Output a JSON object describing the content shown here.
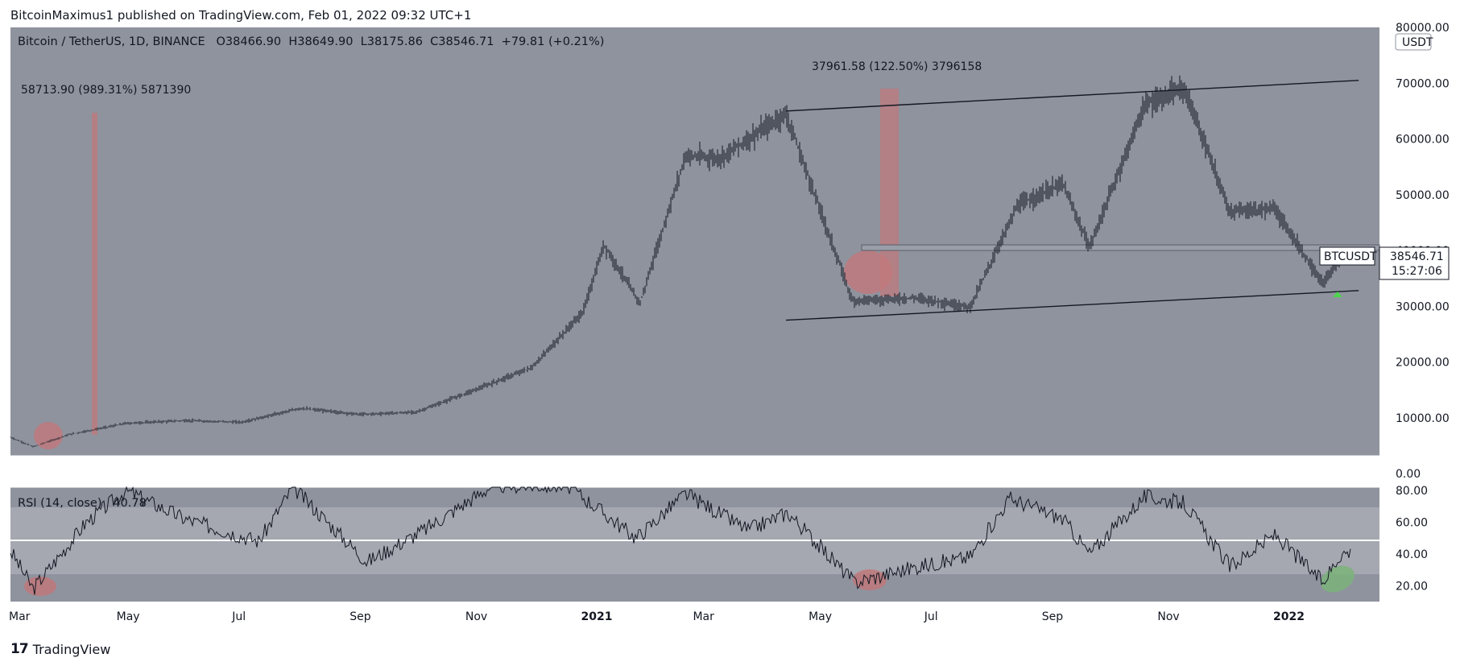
{
  "caption": "BitcoinMaximus1 published on TradingView.com, Feb 01, 2022 09:32 UTC+1",
  "header": {
    "symbol": "Bitcoin / TetherUS, 1D, BINANCE",
    "open_label": "O",
    "open": "38466.90",
    "high_label": "H",
    "high": "38649.90",
    "low_label": "L",
    "low": "38175.86",
    "close_label": "C",
    "close": "38546.71",
    "change": "+79.81 (+0.21%)"
  },
  "price_tag": {
    "symbol": "BTCUSDT",
    "value": "38546.71",
    "countdown": "15:27:06"
  },
  "currency_badge": "USDT",
  "rsi_header": {
    "label": "RSI (14, close)",
    "value": "40.78"
  },
  "footer": {
    "brand": "TradingView",
    "logo_text": "17"
  },
  "colors": {
    "plot_bg": "#8f939e",
    "band_bg": "#a5a8b0",
    "mark_red": "#c0787a",
    "mark_green": "#7bb37a",
    "arrow_green": "#4cd44c",
    "line": "#131722"
  },
  "chart_data": [
    {
      "type": "candlestick",
      "title": "Bitcoin / TetherUS, 1D, BINANCE",
      "x_ticks": [
        "Mar",
        "May",
        "Jul",
        "Sep",
        "Nov",
        "2021",
        "Mar",
        "May",
        "Jul",
        "Sep",
        "Nov",
        "2022"
      ],
      "y_ticks": [
        "80000.00",
        "70000.00",
        "60000.00",
        "50000.00",
        "40000.00",
        "30000.00",
        "20000.00",
        "10000.00",
        "0.00"
      ],
      "ylim": [
        0,
        80000
      ],
      "series_name": "BTCUSDT",
      "approx_closes": [
        {
          "t": "2020-03",
          "v": 6500
        },
        {
          "t": "2020-03-13",
          "v": 4800
        },
        {
          "t": "2020-04",
          "v": 7000
        },
        {
          "t": "2020-05",
          "v": 9000
        },
        {
          "t": "2020-06",
          "v": 9500
        },
        {
          "t": "2020-07",
          "v": 9200
        },
        {
          "t": "2020-08",
          "v": 11700
        },
        {
          "t": "2020-09",
          "v": 10600
        },
        {
          "t": "2020-10",
          "v": 11000
        },
        {
          "t": "2020-11",
          "v": 15000
        },
        {
          "t": "2020-12",
          "v": 19000
        },
        {
          "t": "2020-12-28",
          "v": 29000
        },
        {
          "t": "2021-01-08",
          "v": 41000
        },
        {
          "t": "2021-01-27",
          "v": 30500
        },
        {
          "t": "2021-02-20",
          "v": 57000
        },
        {
          "t": "2021-03-10",
          "v": 56500
        },
        {
          "t": "2021-04-14",
          "v": 64500
        },
        {
          "t": "2021-05-19",
          "v": 31000
        },
        {
          "t": "2021-06-22",
          "v": 31500
        },
        {
          "t": "2021-07-20",
          "v": 29800
        },
        {
          "t": "2021-08-14",
          "v": 48000
        },
        {
          "t": "2021-09-07",
          "v": 52000
        },
        {
          "t": "2021-09-21",
          "v": 40500
        },
        {
          "t": "2021-10-20",
          "v": 66000
        },
        {
          "t": "2021-11-10",
          "v": 69000
        },
        {
          "t": "2021-12-04",
          "v": 47000
        },
        {
          "t": "2021-12-28",
          "v": 47500
        },
        {
          "t": "2022-01-22",
          "v": 34000
        },
        {
          "t": "2022-02-01",
          "v": 38546.71
        }
      ],
      "annotations": [
        "58713.90 (989.31%) 5871390",
        "37961.58 (122.50%) 3796158"
      ],
      "channel": {
        "upper": [
          [
            "2021-04-14",
            65000
          ],
          [
            "2022-02-10",
            70500
          ]
        ],
        "lower": [
          [
            "2021-04-14",
            27500
          ],
          [
            "2022-02-10",
            32800
          ]
        ]
      },
      "horizontal_zone": [
        40000,
        41000
      ]
    },
    {
      "type": "line",
      "title": "RSI (14, close)",
      "y_ticks": [
        "80.00",
        "60.00",
        "40.00",
        "20.00"
      ],
      "ylim": [
        10,
        82
      ],
      "band": [
        30,
        70
      ],
      "midline": 50,
      "current": 40.78
    }
  ]
}
